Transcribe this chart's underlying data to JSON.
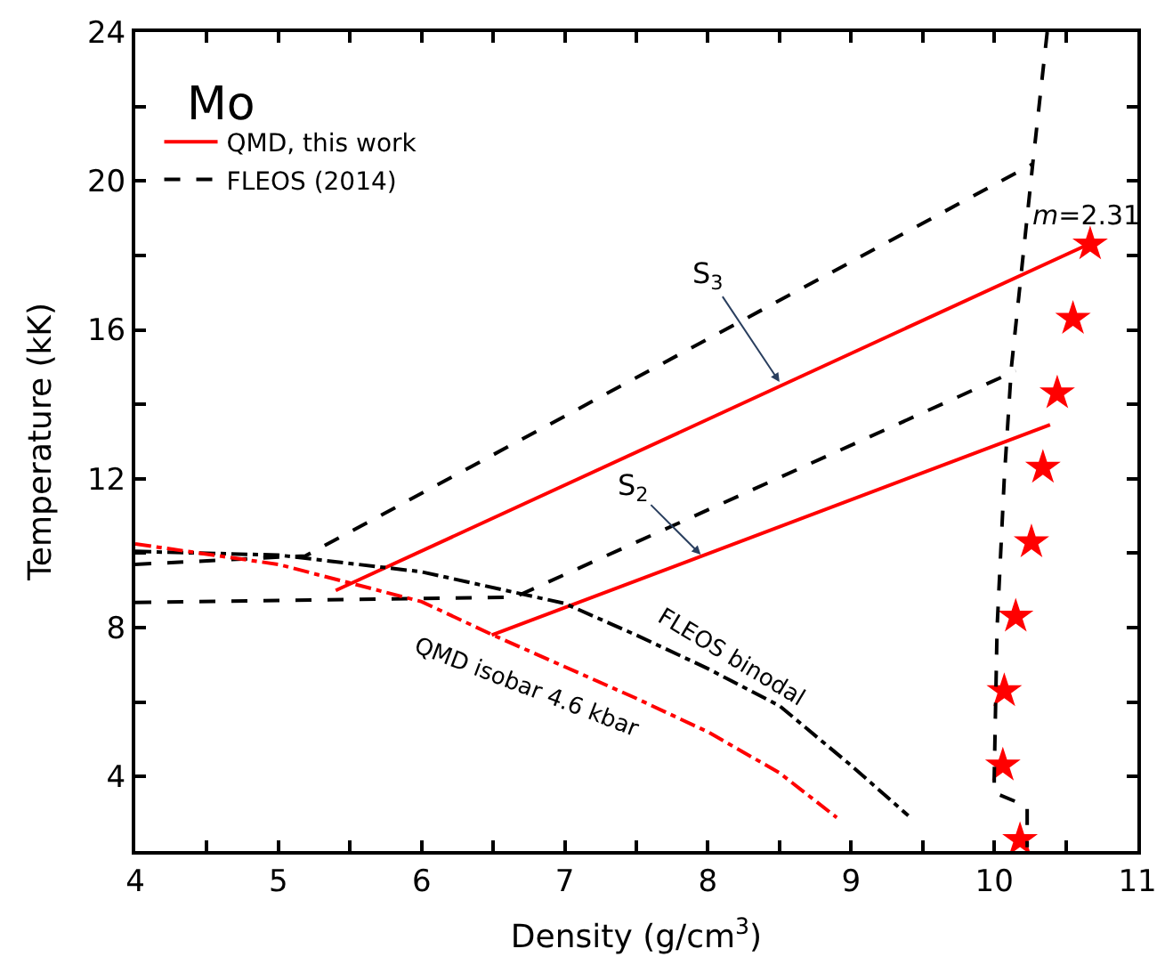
{
  "chart_data": {
    "type": "line",
    "xlabel": "Density (g/cm$^{3}$)",
    "ylabel": "Temperature (kK)",
    "xlim": [
      4,
      11
    ],
    "ylim": [
      2,
      24
    ],
    "xticks": [
      4,
      {
        "value": 4.5,
        "label": null
      },
      5,
      {
        "value": 5.5,
        "label": null
      },
      6,
      {
        "value": 6.5,
        "label": null
      },
      7,
      {
        "value": 7.5,
        "label": null
      },
      8,
      {
        "value": 8.5,
        "label": null
      },
      9,
      {
        "value": 9.5,
        "label": null
      },
      10,
      {
        "value": 10.5,
        "label": null
      },
      11
    ],
    "yticks": [
      4,
      {
        "value": 6,
        "label": null
      },
      8,
      {
        "value": 10,
        "label": null
      },
      12,
      {
        "value": 14,
        "label": null
      },
      16,
      {
        "value": 18,
        "label": null
      },
      20,
      {
        "value": 22,
        "label": null
      },
      24
    ],
    "legend": "top left",
    "series": [
      {
        "name": "QMD, this work",
        "color": "#ff0000",
        "line_style": "solid",
        "marker": "none",
        "x": [
          5.4,
          10.63,
          null,
          6.49,
          10.39
        ],
        "values": [
          9.0,
          18.25,
          null,
          7.8,
          13.45
        ]
      },
      {
        "type": "scatter",
        "color": "#ff0000",
        "marker": "star",
        "x": [
          10.18,
          10.06,
          10.07,
          10.15,
          10.26,
          10.34,
          10.44,
          10.55,
          10.67
        ],
        "values": [
          2.3,
          4.3,
          6.3,
          8.3,
          10.3,
          12.3,
          14.3,
          16.3,
          18.3
        ]
      },
      {
        "name": "FLEOS (2014)",
        "color": "#000000",
        "line_style": "dashed",
        "marker": "none",
        "x": [
          4,
          5.19,
          10.27,
          null,
          4,
          6.65,
          10.15,
          null,
          10.37,
          10.27,
          10.12,
          10.07,
          10.02,
          10.0,
          10.0,
          10.23,
          10.23
        ],
        "values": [
          9.7,
          9.93,
          20.46,
          null,
          8.68,
          8.82,
          14.9,
          null,
          24,
          20.5,
          15,
          12,
          8,
          4,
          3.57,
          3.2,
          2.1
        ]
      },
      {
        "color": "#000000",
        "line_style": "dashdot",
        "marker": "none",
        "x": [
          4,
          5,
          6,
          7,
          7.5,
          8,
          8.5,
          9,
          9.4
        ],
        "values": [
          10.05,
          9.95,
          9.5,
          8.65,
          7.8,
          6.9,
          5.9,
          4.3,
          2.95
        ]
      },
      {
        "color": "#ff0000",
        "line_style": "dashdot",
        "marker": "none",
        "x": [
          4,
          5,
          6,
          6.5,
          7,
          7.5,
          8,
          8.5,
          8.9
        ],
        "values": [
          10.25,
          9.7,
          8.7,
          7.8,
          6.95,
          6.1,
          5.2,
          4.1,
          2.9
        ]
      }
    ],
    "annotations": [
      "Mo",
      "m=2.31",
      {
        "text": "S$_{3}$",
        "x": 8.5,
        "y": 14.6
      },
      {
        "text": "S$_{2}$",
        "x": 7.95,
        "y": 9.96
      },
      "FLEOS binodal",
      "QMD isobar 4.6 kbar"
    ]
  }
}
